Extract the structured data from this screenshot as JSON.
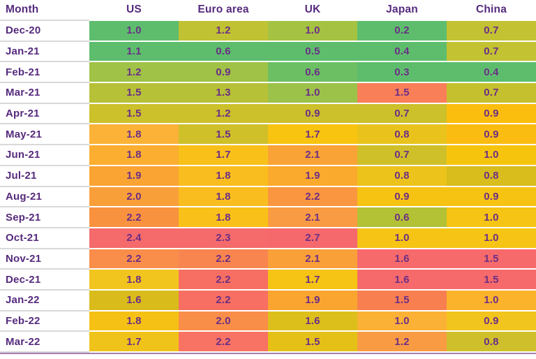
{
  "header": {
    "columns": [
      "Month",
      "US",
      "Euro area",
      "UK",
      "Japan",
      "China"
    ]
  },
  "theme": {
    "header_text": "#562a7d",
    "value_text": "#6b2e86",
    "row_line": "#d9d9d9",
    "cell_gap": "#ffffff",
    "bottom_border": "#a27fae",
    "background": "#ffffff",
    "scale_low": "#5ebd6d",
    "scale_mid": "#f5c414",
    "scale_high": "#f56a6b"
  },
  "chart_data": {
    "type": "heatmap",
    "title": "",
    "xlabel": "",
    "ylabel": "",
    "row_label_header": "Month",
    "categories": [
      "Dec-20",
      "Jan-21",
      "Feb-21",
      "Mar-21",
      "Apr-21",
      "May-21",
      "Jun-21",
      "Jul-21",
      "Aug-21",
      "Sep-21",
      "Oct-21",
      "Nov-21",
      "Dec-21",
      "Jan-22",
      "Feb-22",
      "Mar-22"
    ],
    "value_format": "0.1f",
    "legend": "none",
    "series": [
      {
        "name": "US",
        "values": [
          1.0,
          1.1,
          1.2,
          1.5,
          1.5,
          1.8,
          1.8,
          1.9,
          2.0,
          2.2,
          2.4,
          2.2,
          1.8,
          1.6,
          1.8,
          1.7
        ],
        "cell_colors": [
          "#5ebd6d",
          "#5ebd6d",
          "#9fc247",
          "#b6c138",
          "#ccc02b",
          "#fbb237",
          "#fbae2f",
          "#faa433",
          "#f99f3a",
          "#f8923f",
          "#f56a6b",
          "#f98e4a",
          "#f2c41e",
          "#d9bb1c",
          "#f5c114",
          "#f0c31a"
        ]
      },
      {
        "name": "Euro area",
        "values": [
          1.2,
          0.6,
          0.9,
          1.3,
          1.2,
          1.5,
          1.7,
          1.8,
          1.8,
          1.8,
          2.3,
          2.2,
          2.2,
          2.2,
          2.0,
          2.2
        ],
        "cell_colors": [
          "#c0c233",
          "#5ebd6d",
          "#9fc247",
          "#b6c138",
          "#ccc02b",
          "#cfc02a",
          "#f9c01a",
          "#f9bd1f",
          "#f9bd1f",
          "#f9c01a",
          "#f56a6b",
          "#f8854f",
          "#f66f62",
          "#f66f62",
          "#f98e49",
          "#f97364"
        ]
      },
      {
        "name": "UK",
        "values": [
          1.0,
          0.5,
          0.6,
          1.0,
          0.9,
          1.7,
          2.1,
          1.9,
          2.2,
          2.1,
          2.7,
          2.1,
          1.7,
          1.9,
          1.6,
          1.5
        ],
        "cell_colors": [
          "#a5c243",
          "#5ebd6d",
          "#6cbf63",
          "#9cc24a",
          "#ccc02b",
          "#f8c40f",
          "#f9a236",
          "#faaa2d",
          "#f9963f",
          "#f99b43",
          "#f5696d",
          "#f9a038",
          "#f5c414",
          "#faa52f",
          "#ddbf1b",
          "#e5c117"
        ]
      },
      {
        "name": "Japan",
        "values": [
          0.2,
          0.4,
          0.3,
          1.5,
          0.7,
          0.8,
          0.7,
          0.8,
          0.9,
          0.6,
          1.0,
          1.6,
          1.6,
          1.5,
          1.0,
          1.2
        ],
        "cell_colors": [
          "#5ebd6d",
          "#5ebd6d",
          "#5ebd6d",
          "#f87f58",
          "#ccc02b",
          "#e9c31b",
          "#cfc02a",
          "#ecc31b",
          "#f7c313",
          "#b3c135",
          "#f5c414",
          "#f66a6b",
          "#f66a6b",
          "#f87f50",
          "#fbb135",
          "#f99b43"
        ]
      },
      {
        "name": "China",
        "values": [
          0.7,
          0.7,
          0.4,
          0.7,
          0.9,
          0.9,
          1.0,
          0.8,
          0.9,
          1.0,
          1.0,
          1.5,
          1.5,
          1.0,
          0.9,
          0.8
        ],
        "cell_colors": [
          "#c2c233",
          "#c2c233",
          "#5ebd6d",
          "#c5c12e",
          "#fcbe0e",
          "#fbbc12",
          "#f7c40d",
          "#d8bd1c",
          "#f7c313",
          "#f5c414",
          "#f5c414",
          "#f66a6b",
          "#f66a6b",
          "#fbb32c",
          "#f2c41e",
          "#cfc02b"
        ]
      }
    ]
  }
}
